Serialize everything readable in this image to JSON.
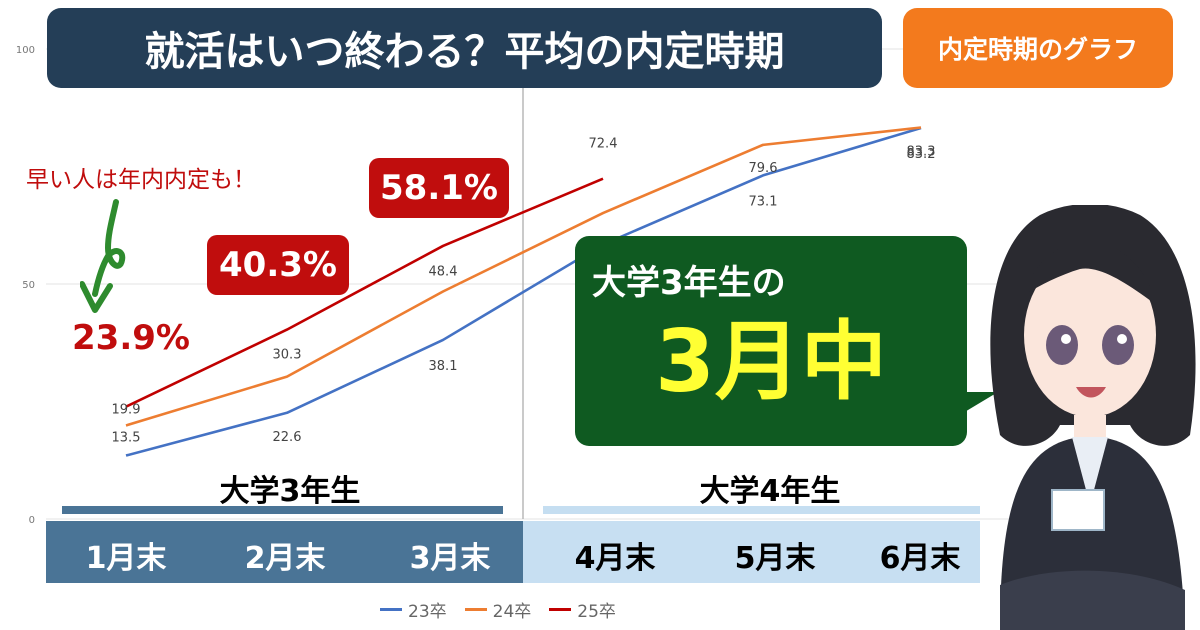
{
  "title": "就活はいつ終わる？平均の内定時期",
  "tag": "内定時期のグラフ",
  "note": "早い人は年内内定も！",
  "badges": [
    "58.1%",
    "40.3%",
    "23.9%"
  ],
  "callout": {
    "line1": "大学3年生の",
    "line2": "3月中"
  },
  "year_labels": [
    "大学3年生",
    "大学4年生"
  ],
  "months": [
    "1月末",
    "2月末",
    "3月末",
    "4月末",
    "5月末",
    "6月末"
  ],
  "colors": {
    "s23": "#4472c4",
    "s24": "#ed7d31",
    "s25": "#c00000",
    "title_bg": "#243e57",
    "tag_bg": "#f37a1d",
    "badge_bg": "#c00d0d",
    "callout_bg": "#0f5a21"
  },
  "icons": {
    "note_arrow": "curly-arrow-down-icon"
  },
  "chart_data": {
    "type": "line",
    "categories": [
      "1月末",
      "2月末",
      "3月末",
      "4月末",
      "5月末",
      "6月末"
    ],
    "ylim": [
      0,
      100
    ],
    "yticks": [
      0,
      50,
      100
    ],
    "grid": true,
    "legend": "bottom",
    "series": [
      {
        "name": "23卒",
        "values": [
          13.5,
          22.6,
          38.1,
          58.4,
          73.1,
          83.2
        ]
      },
      {
        "name": "24卒",
        "values": [
          19.9,
          30.3,
          48.4,
          65.1,
          79.6,
          83.3
        ]
      },
      {
        "name": "25卒",
        "values": [
          23.9,
          40.3,
          58.1,
          72.4,
          null,
          null
        ]
      }
    ]
  }
}
